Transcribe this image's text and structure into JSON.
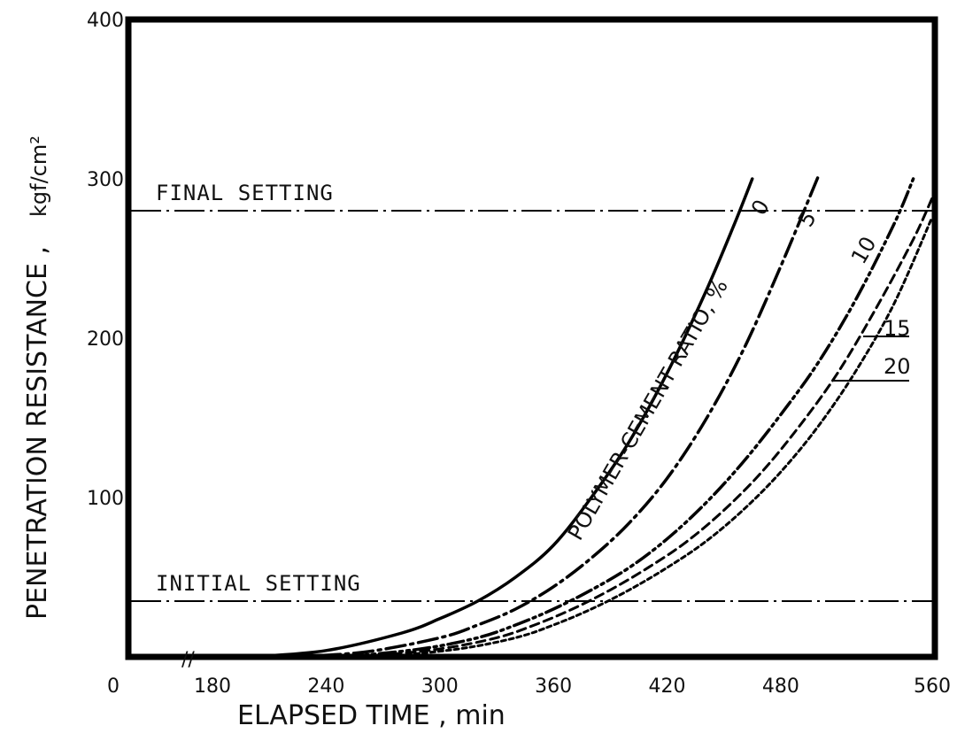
{
  "chart_data": {
    "type": "line",
    "xlabel": "ELAPSED TIME , min",
    "ylabel": "PENETRATION RESISTANCE ,",
    "ylabel_unit": "kgf/cm²",
    "x_ticks": [
      "0",
      "180",
      "240",
      "300",
      "360",
      "420",
      "480",
      "560"
    ],
    "y_ticks": [
      "0",
      "100",
      "200",
      "300",
      "400"
    ],
    "ylim": [
      0,
      400
    ],
    "x_axis_break": "//",
    "grid": false,
    "group_label": "POLYMER-CEMENT RATIO, %",
    "reference_lines": [
      {
        "label": "FINAL SETTING",
        "y": 280
      },
      {
        "label": "INITIAL SETTING",
        "y": 35
      }
    ],
    "series": [
      {
        "name": "0",
        "style": "solid",
        "x": [
          200,
          240,
          280,
          300,
          320,
          340,
          360,
          380,
          400,
          420,
          440,
          455,
          465
        ],
        "y": [
          0,
          4,
          15,
          24,
          35,
          50,
          70,
          100,
          135,
          178,
          228,
          270,
          300
        ]
      },
      {
        "name": "5",
        "style": "dashdot",
        "x": [
          220,
          260,
          300,
          320,
          340,
          360,
          380,
          400,
          420,
          440,
          460,
          480,
          500
        ],
        "y": [
          0,
          3,
          12,
          20,
          30,
          44,
          62,
          84,
          112,
          148,
          192,
          245,
          302
        ]
      },
      {
        "name": "10",
        "style": "dashdotdot",
        "x": [
          250,
          290,
          320,
          340,
          360,
          380,
          400,
          420,
          440,
          460,
          480,
          500,
          520,
          540,
          550
        ],
        "y": [
          0,
          5,
          12,
          20,
          30,
          42,
          56,
          74,
          96,
          122,
          152,
          185,
          225,
          272,
          300
        ]
      },
      {
        "name": "15",
        "style": "dashed",
        "x": [
          260,
          300,
          330,
          350,
          370,
          390,
          410,
          430,
          450,
          470,
          490,
          510,
          530,
          550,
          560
        ],
        "y": [
          0,
          5,
          12,
          20,
          30,
          42,
          56,
          72,
          92,
          116,
          145,
          178,
          218,
          262,
          288
        ]
      },
      {
        "name": "20",
        "style": "dotted",
        "x": [
          270,
          310,
          340,
          360,
          380,
          400,
          420,
          440,
          460,
          480,
          500,
          520,
          540,
          560
        ],
        "y": [
          0,
          5,
          12,
          20,
          30,
          42,
          56,
          72,
          92,
          116,
          145,
          180,
          222,
          276
        ]
      }
    ]
  }
}
